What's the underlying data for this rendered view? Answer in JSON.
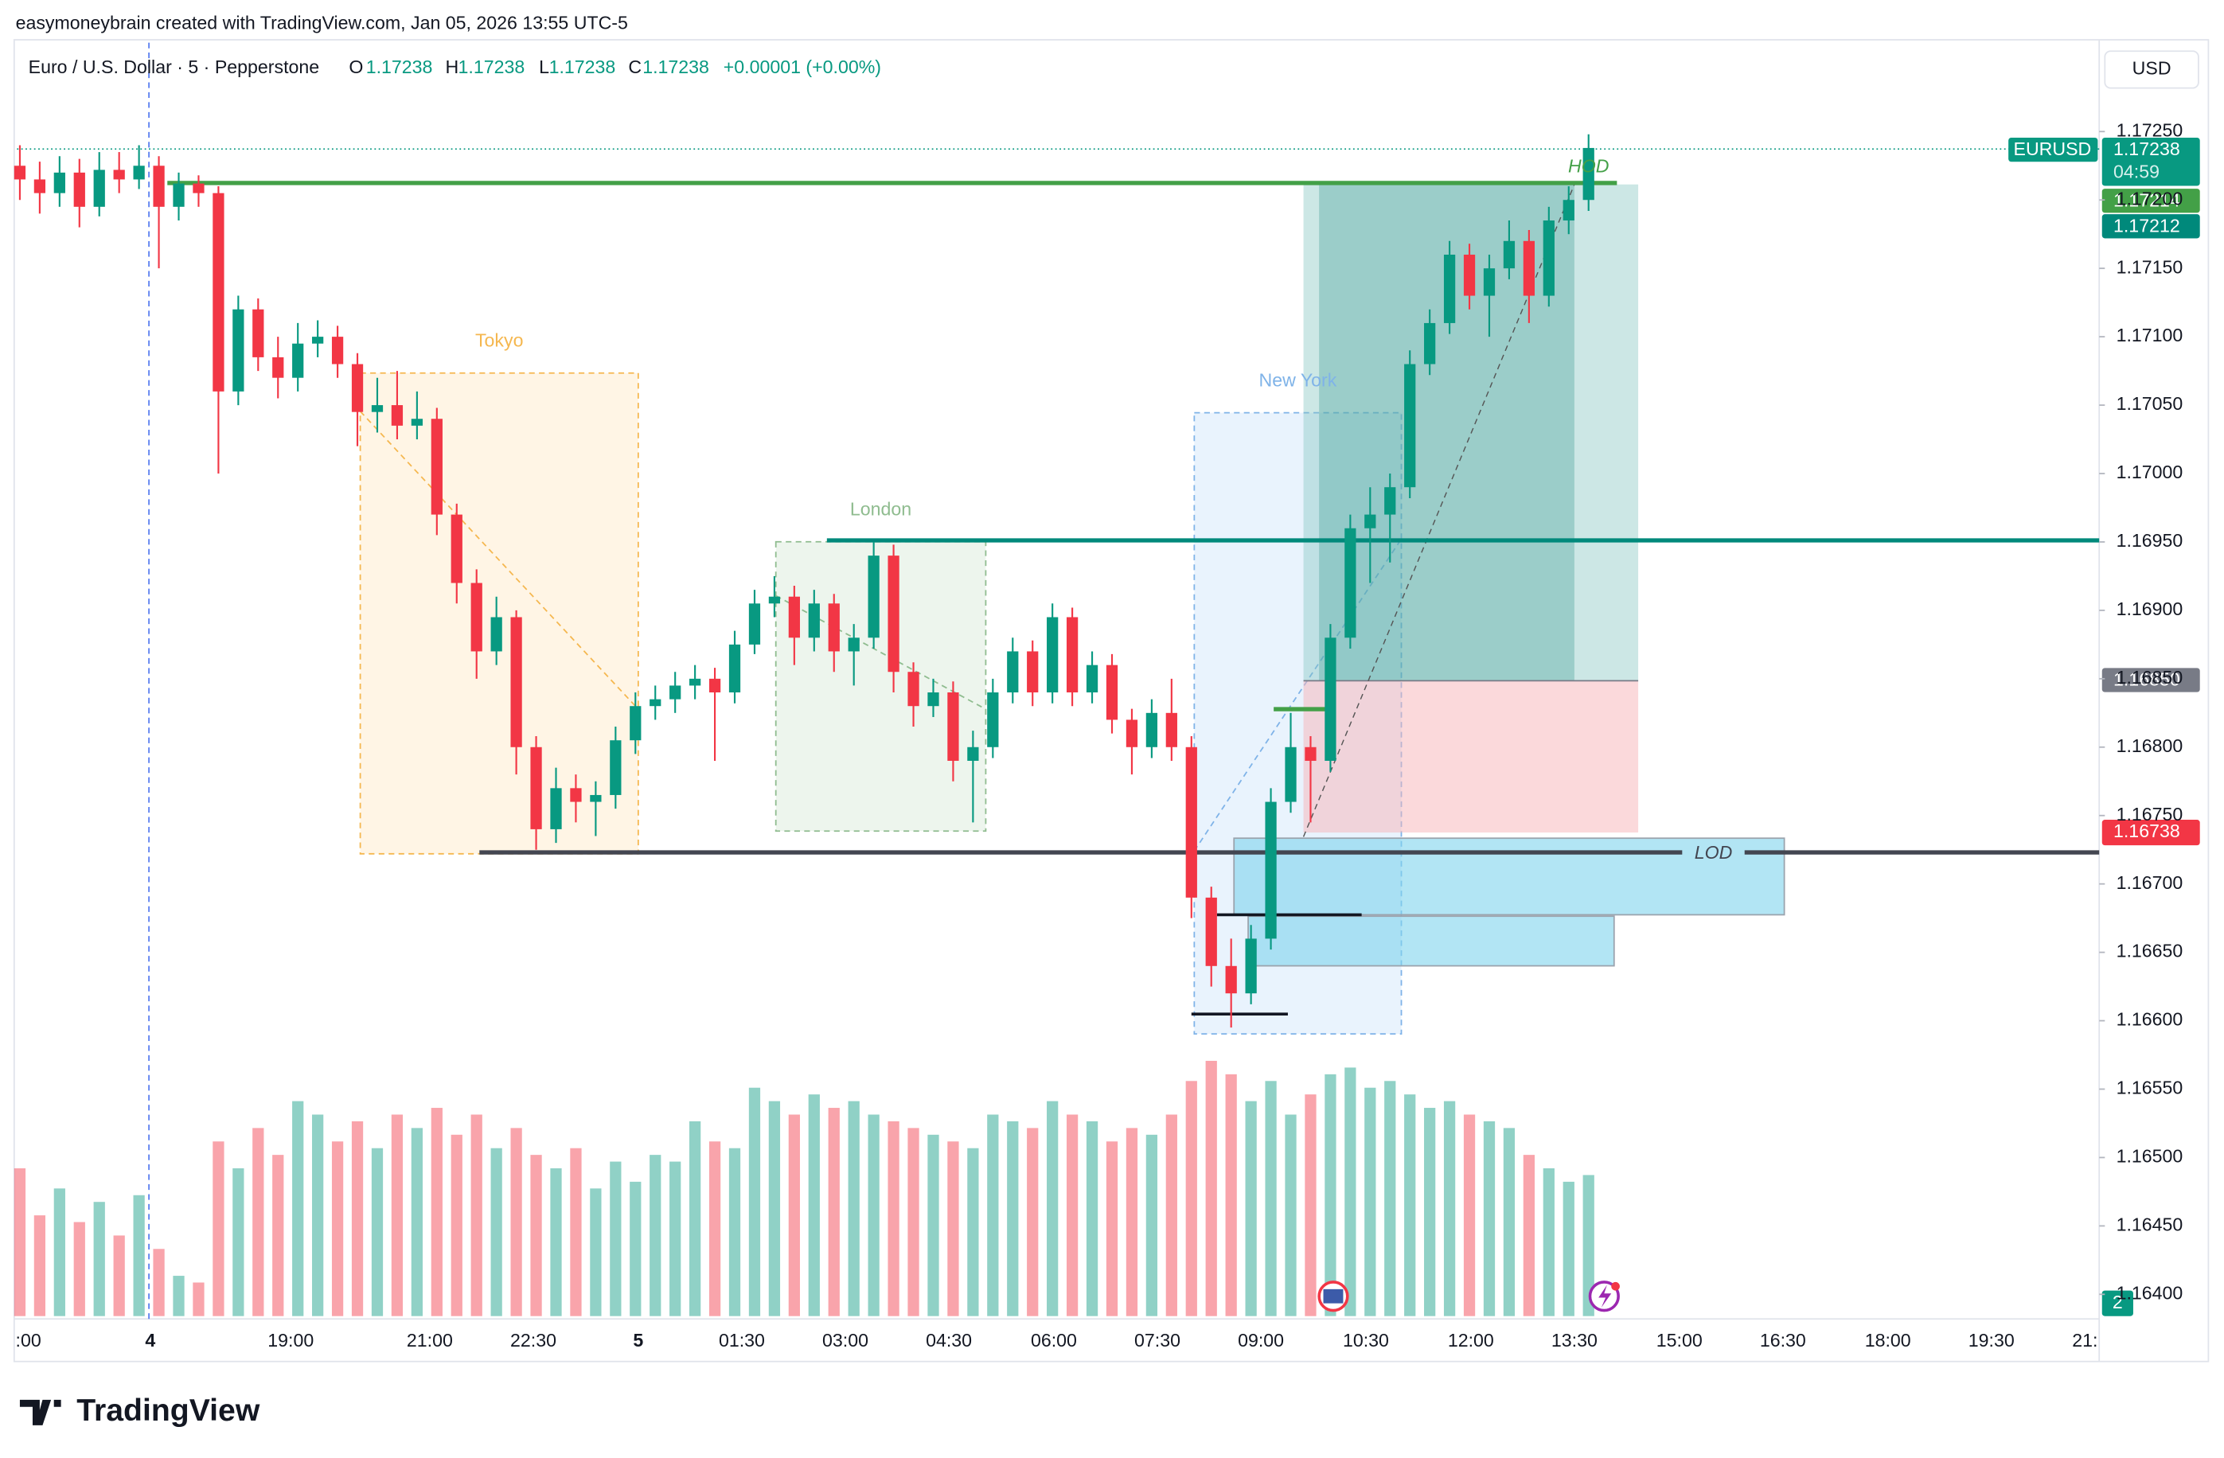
{
  "header": {
    "attribution": "easymoneybrain created with TradingView.com, Jan 05, 2026 13:55 UTC-5",
    "symbol": "Euro / U.S. Dollar · 5 · Pepperstone",
    "ohlc": [
      {
        "key": "O",
        "value": "1.17238"
      },
      {
        "key": "H",
        "value": "1.17238"
      },
      {
        "key": "L",
        "value": "1.17238"
      },
      {
        "key": "C",
        "value": "1.17238"
      }
    ],
    "change": "+0.00001 (+0.00%)",
    "currency": "USD"
  },
  "price_tags": {
    "ticker": "EURUSD",
    "last": "1.17238",
    "countdown": "04:59",
    "hod_level": "1.17214",
    "bid": "1.17212",
    "entry": "1.16850",
    "stop": "1.16738",
    "badge": "2"
  },
  "annotations": {
    "sessions": [
      "Tokyo",
      "London",
      "New York"
    ],
    "hod": "HOD",
    "lod": "LOD"
  },
  "brand": "TradingView",
  "chart_data": {
    "type": "candlestick",
    "up_color": "#089981",
    "down_color": "#f23645",
    "ylim": [
      1.16382,
      1.17315
    ],
    "yticks": [
      {
        "value": 1.164,
        "label": "1.16400"
      },
      {
        "value": 1.1645,
        "label": "1.16450"
      },
      {
        "value": 1.165,
        "label": "1.16500"
      },
      {
        "value": 1.1655,
        "label": "1.16550"
      },
      {
        "value": 1.166,
        "label": "1.16600"
      },
      {
        "value": 1.1665,
        "label": "1.16650"
      },
      {
        "value": 1.167,
        "label": "1.16700"
      },
      {
        "value": 1.1675,
        "label": "1.16750"
      },
      {
        "value": 1.168,
        "label": "1.16800"
      },
      {
        "value": 1.1685,
        "label": "1.16850"
      },
      {
        "value": 1.169,
        "label": "1.16900"
      },
      {
        "value": 1.1695,
        "label": "1.16950"
      },
      {
        "value": 1.17,
        "label": "1.17000"
      },
      {
        "value": 1.1705,
        "label": "1.17050"
      },
      {
        "value": 1.171,
        "label": "1.17100"
      },
      {
        "value": 1.1715,
        "label": "1.17150"
      },
      {
        "value": 1.172,
        "label": "1.17200"
      },
      {
        "value": 1.1725,
        "label": "1.17250"
      }
    ],
    "xtick_labels": [
      ":00",
      "4",
      "19:00",
      "21:00",
      "22:30",
      "5",
      "01:30",
      "03:00",
      "04:30",
      "06:00",
      "07:30",
      "09:00",
      "10:30",
      "12:00",
      "13:30",
      "15:00",
      "16:30",
      "18:00",
      "19:30",
      "21:"
    ],
    "candles": [
      [
        1.17225,
        1.1724,
        1.172,
        1.17215
      ],
      [
        1.17215,
        1.17228,
        1.1719,
        1.17205
      ],
      [
        1.17205,
        1.17232,
        1.17195,
        1.1722
      ],
      [
        1.1722,
        1.1723,
        1.1718,
        1.17195
      ],
      [
        1.17195,
        1.17235,
        1.17188,
        1.17222
      ],
      [
        1.17222,
        1.17235,
        1.17205,
        1.17215
      ],
      [
        1.17215,
        1.1724,
        1.17208,
        1.17225
      ],
      [
        1.17225,
        1.17232,
        1.1715,
        1.17195
      ],
      [
        1.17195,
        1.1722,
        1.17185,
        1.17212
      ],
      [
        1.17212,
        1.17218,
        1.17195,
        1.17205
      ],
      [
        1.17205,
        1.1721,
        1.17,
        1.1706
      ],
      [
        1.1706,
        1.1713,
        1.1705,
        1.1712
      ],
      [
        1.1712,
        1.17128,
        1.17075,
        1.17085
      ],
      [
        1.17085,
        1.171,
        1.17055,
        1.1707
      ],
      [
        1.1707,
        1.1711,
        1.1706,
        1.17095
      ],
      [
        1.17095,
        1.17112,
        1.17085,
        1.171
      ],
      [
        1.171,
        1.17108,
        1.1707,
        1.1708
      ],
      [
        1.1708,
        1.17088,
        1.1702,
        1.17045
      ],
      [
        1.17045,
        1.1707,
        1.1703,
        1.1705
      ],
      [
        1.1705,
        1.17075,
        1.17025,
        1.17035
      ],
      [
        1.17035,
        1.1706,
        1.17025,
        1.1704
      ],
      [
        1.1704,
        1.17048,
        1.16955,
        1.1697
      ],
      [
        1.1697,
        1.16978,
        1.16905,
        1.1692
      ],
      [
        1.1692,
        1.1693,
        1.1685,
        1.1687
      ],
      [
        1.1687,
        1.1691,
        1.1686,
        1.16895
      ],
      [
        1.16895,
        1.169,
        1.1678,
        1.168
      ],
      [
        1.168,
        1.16808,
        1.16725,
        1.1674
      ],
      [
        1.1674,
        1.16785,
        1.1673,
        1.1677
      ],
      [
        1.1677,
        1.1678,
        1.16745,
        1.1676
      ],
      [
        1.1676,
        1.16775,
        1.16735,
        1.16765
      ],
      [
        1.16765,
        1.16815,
        1.16755,
        1.16805
      ],
      [
        1.16805,
        1.1684,
        1.16795,
        1.1683
      ],
      [
        1.1683,
        1.16845,
        1.1682,
        1.16835
      ],
      [
        1.16835,
        1.16855,
        1.16825,
        1.16845
      ],
      [
        1.16845,
        1.1686,
        1.16835,
        1.1685
      ],
      [
        1.1685,
        1.16858,
        1.1679,
        1.1684
      ],
      [
        1.1684,
        1.16885,
        1.16832,
        1.16875
      ],
      [
        1.16875,
        1.16915,
        1.16868,
        1.16905
      ],
      [
        1.16905,
        1.16925,
        1.16895,
        1.1691
      ],
      [
        1.1691,
        1.16918,
        1.1686,
        1.1688
      ],
      [
        1.1688,
        1.16915,
        1.1687,
        1.16905
      ],
      [
        1.16905,
        1.16912,
        1.16855,
        1.1687
      ],
      [
        1.1687,
        1.1689,
        1.16845,
        1.1688
      ],
      [
        1.1688,
        1.1695,
        1.16872,
        1.1694
      ],
      [
        1.1694,
        1.16948,
        1.1684,
        1.16855
      ],
      [
        1.16855,
        1.16862,
        1.16815,
        1.1683
      ],
      [
        1.1683,
        1.1685,
        1.16822,
        1.1684
      ],
      [
        1.1684,
        1.16848,
        1.16775,
        1.1679
      ],
      [
        1.1679,
        1.16812,
        1.16745,
        1.168
      ],
      [
        1.168,
        1.1685,
        1.16792,
        1.1684
      ],
      [
        1.1684,
        1.1688,
        1.16832,
        1.1687
      ],
      [
        1.1687,
        1.16878,
        1.1683,
        1.1684
      ],
      [
        1.1684,
        1.16905,
        1.16832,
        1.16895
      ],
      [
        1.16895,
        1.16902,
        1.1683,
        1.1684
      ],
      [
        1.1684,
        1.1687,
        1.16832,
        1.1686
      ],
      [
        1.1686,
        1.16868,
        1.1681,
        1.1682
      ],
      [
        1.1682,
        1.16828,
        1.1678,
        1.168
      ],
      [
        1.168,
        1.16835,
        1.16792,
        1.16825
      ],
      [
        1.16825,
        1.1685,
        1.1679,
        1.168
      ],
      [
        1.168,
        1.16808,
        1.16675,
        1.1669
      ],
      [
        1.1669,
        1.16698,
        1.16625,
        1.1664
      ],
      [
        1.1664,
        1.1666,
        1.16595,
        1.1662
      ],
      [
        1.1662,
        1.1667,
        1.16612,
        1.1666
      ],
      [
        1.1666,
        1.1677,
        1.16652,
        1.1676
      ],
      [
        1.1676,
        1.16825,
        1.16752,
        1.168
      ],
      [
        1.168,
        1.16808,
        1.16745,
        1.1679
      ],
      [
        1.1679,
        1.1689,
        1.16782,
        1.1688
      ],
      [
        1.1688,
        1.1697,
        1.16872,
        1.1696
      ],
      [
        1.1696,
        1.1699,
        1.1692,
        1.1697
      ],
      [
        1.1697,
        1.17,
        1.16935,
        1.1699
      ],
      [
        1.1699,
        1.1709,
        1.16982,
        1.1708
      ],
      [
        1.1708,
        1.1712,
        1.17072,
        1.1711
      ],
      [
        1.1711,
        1.1717,
        1.17102,
        1.1716
      ],
      [
        1.1716,
        1.17168,
        1.1712,
        1.1713
      ],
      [
        1.1713,
        1.1716,
        1.171,
        1.1715
      ],
      [
        1.1715,
        1.17185,
        1.17142,
        1.1717
      ],
      [
        1.1717,
        1.17178,
        1.1711,
        1.1713
      ],
      [
        1.1713,
        1.17195,
        1.17122,
        1.17185
      ],
      [
        1.17185,
        1.1721,
        1.17175,
        1.172
      ],
      [
        1.172,
        1.17248,
        1.17192,
        1.17238
      ]
    ],
    "volumes": [
      110,
      75,
      95,
      70,
      85,
      60,
      90,
      50,
      30,
      25,
      130,
      110,
      140,
      120,
      160,
      150,
      130,
      145,
      125,
      150,
      140,
      155,
      135,
      150,
      125,
      140,
      120,
      110,
      125,
      95,
      115,
      100,
      120,
      115,
      145,
      130,
      125,
      170,
      160,
      150,
      165,
      155,
      160,
      150,
      145,
      140,
      135,
      130,
      125,
      150,
      145,
      140,
      160,
      150,
      145,
      130,
      140,
      135,
      150,
      175,
      190,
      180,
      160,
      175,
      150,
      165,
      180,
      185,
      170,
      175,
      165,
      155,
      160,
      150,
      145,
      140,
      120,
      110,
      100,
      105
    ]
  }
}
